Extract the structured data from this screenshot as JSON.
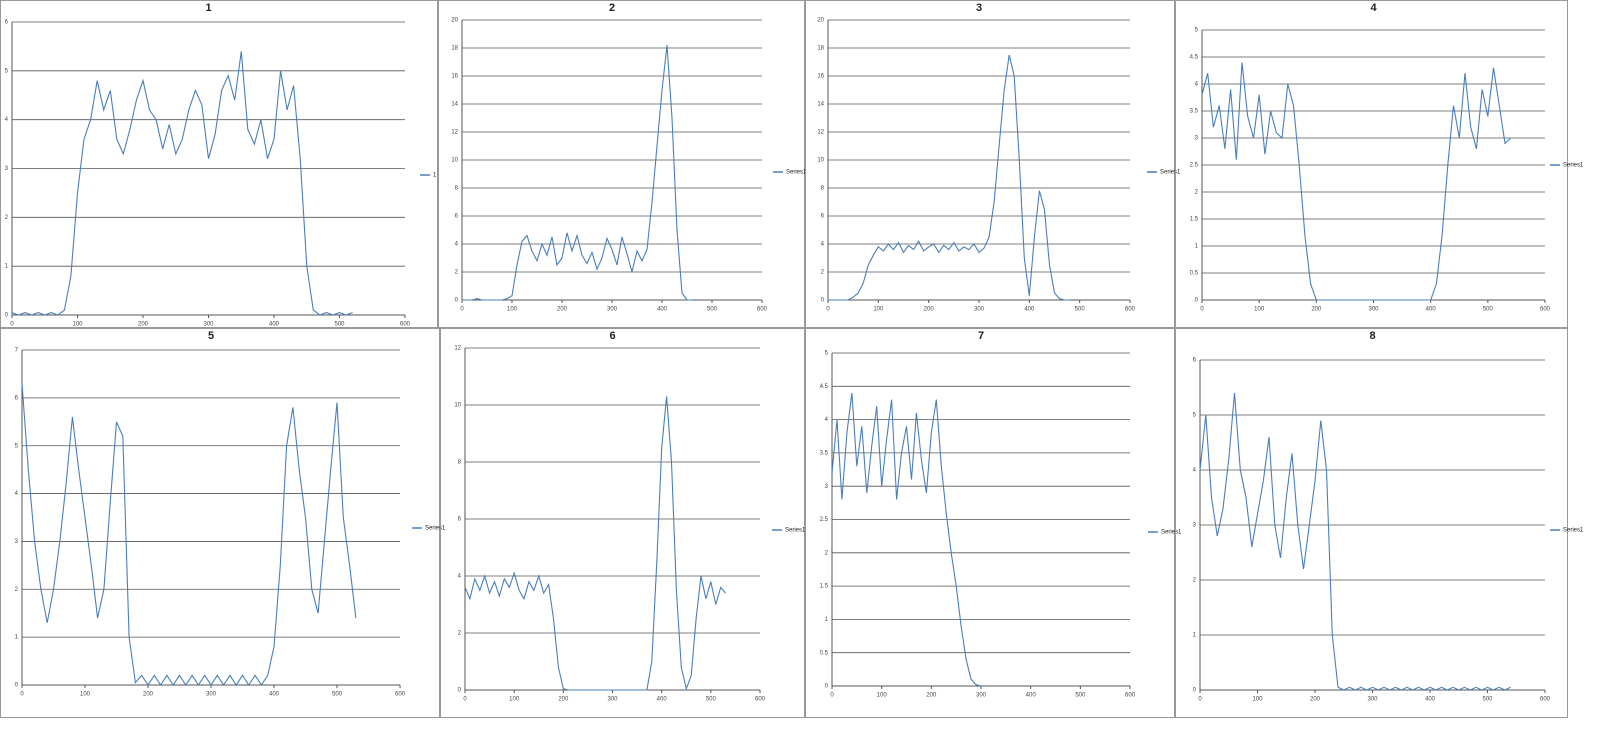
{
  "chart_data": [
    {
      "type": "line",
      "title": "1",
      "xlim": [
        0,
        600
      ],
      "xticks": [
        0,
        100,
        200,
        300,
        400,
        500,
        600
      ],
      "ylim": [
        0,
        6
      ],
      "yticks": [
        0,
        1,
        2,
        3,
        4,
        5,
        6
      ],
      "grid": true,
      "x": [
        0,
        10,
        20,
        30,
        40,
        50,
        60,
        70,
        80,
        90,
        100,
        110,
        120,
        130,
        140,
        150,
        160,
        170,
        180,
        190,
        200,
        210,
        220,
        230,
        240,
        250,
        260,
        270,
        280,
        290,
        300,
        310,
        320,
        330,
        340,
        350,
        360,
        370,
        380,
        390,
        400,
        410,
        420,
        430,
        440,
        450,
        460,
        470,
        480,
        490,
        500,
        510,
        520
      ],
      "series": [
        {
          "name": "1",
          "color": "#4a7ebb",
          "values": [
            0.05,
            0,
            0.05,
            0,
            0.05,
            0,
            0.05,
            0,
            0.1,
            0.8,
            2.5,
            3.6,
            4.0,
            4.8,
            4.2,
            4.6,
            3.6,
            3.3,
            3.8,
            4.4,
            4.8,
            4.2,
            4.0,
            3.4,
            3.9,
            3.3,
            3.6,
            4.2,
            4.6,
            4.3,
            3.2,
            3.7,
            4.6,
            4.9,
            4.4,
            5.4,
            3.8,
            3.5,
            4.0,
            3.2,
            3.6,
            5.0,
            4.2,
            4.7,
            3.2,
            1.0,
            0.1,
            0,
            0.05,
            0,
            0.05,
            0,
            0.05
          ]
        }
      ]
    },
    {
      "type": "line",
      "title": "2",
      "xlim": [
        0,
        600
      ],
      "xticks": [
        0,
        100,
        200,
        300,
        400,
        500,
        600
      ],
      "ylim": [
        0,
        20
      ],
      "yticks": [
        0,
        2,
        4,
        6,
        8,
        10,
        12,
        14,
        16,
        18,
        20
      ],
      "grid": true,
      "x": [
        0,
        10,
        20,
        30,
        40,
        50,
        60,
        70,
        80,
        90,
        100,
        110,
        120,
        130,
        140,
        150,
        160,
        170,
        180,
        190,
        200,
        210,
        220,
        230,
        240,
        250,
        260,
        270,
        280,
        290,
        300,
        310,
        320,
        330,
        340,
        350,
        360,
        370,
        380,
        390,
        400,
        410,
        420,
        430,
        440,
        450,
        460
      ],
      "series": [
        {
          "name": "Series1",
          "color": "#4a7ebb",
          "values": [
            0,
            0,
            0,
            0.1,
            0,
            0,
            0,
            0,
            0,
            0.1,
            0.3,
            2.5,
            4.2,
            4.6,
            3.5,
            2.8,
            4.0,
            3.2,
            4.5,
            2.5,
            3.0,
            4.8,
            3.5,
            4.6,
            3.2,
            2.6,
            3.4,
            2.2,
            3.0,
            4.4,
            3.6,
            2.5,
            4.5,
            3.3,
            2.0,
            3.5,
            2.8,
            3.6,
            7.0,
            11.0,
            15.0,
            18.2,
            13.0,
            5.0,
            0.5,
            0,
            0
          ]
        }
      ]
    },
    {
      "type": "line",
      "title": "3",
      "xlim": [
        0,
        600
      ],
      "xticks": [
        0,
        100,
        200,
        300,
        400,
        500,
        600
      ],
      "ylim": [
        0,
        20
      ],
      "yticks": [
        0,
        2,
        4,
        6,
        8,
        10,
        12,
        14,
        16,
        18,
        20
      ],
      "grid": true,
      "x": [
        0,
        10,
        20,
        30,
        40,
        50,
        60,
        70,
        80,
        90,
        100,
        110,
        120,
        130,
        140,
        150,
        160,
        170,
        180,
        190,
        200,
        210,
        220,
        230,
        240,
        250,
        260,
        270,
        280,
        290,
        300,
        310,
        320,
        330,
        340,
        350,
        360,
        370,
        380,
        390,
        400,
        410,
        420,
        430,
        440,
        450,
        460,
        470,
        480
      ],
      "series": [
        {
          "name": "Series1",
          "color": "#4a7ebb",
          "values": [
            0,
            0,
            0,
            0,
            0,
            0.2,
            0.5,
            1.2,
            2.5,
            3.2,
            3.8,
            3.5,
            4.0,
            3.6,
            4.1,
            3.4,
            3.9,
            3.6,
            4.2,
            3.5,
            3.8,
            4.0,
            3.4,
            3.9,
            3.6,
            4.1,
            3.5,
            3.8,
            3.6,
            4.0,
            3.4,
            3.7,
            4.5,
            7.0,
            11.0,
            15.0,
            17.5,
            16.0,
            10.0,
            3.0,
            0.3,
            4.5,
            7.8,
            6.5,
            2.5,
            0.5,
            0.1,
            0,
            0
          ]
        }
      ]
    },
    {
      "type": "line",
      "title": "4",
      "xlim": [
        0,
        600
      ],
      "xticks": [
        0,
        100,
        200,
        300,
        400,
        500,
        600
      ],
      "ylim": [
        0,
        5
      ],
      "yticks": [
        0,
        0.5,
        1,
        1.5,
        2,
        2.5,
        3,
        3.5,
        4,
        4.5,
        5
      ],
      "grid": true,
      "x": [
        0,
        10,
        20,
        30,
        40,
        50,
        60,
        70,
        80,
        90,
        100,
        110,
        120,
        130,
        140,
        150,
        160,
        170,
        180,
        190,
        200,
        210,
        220,
        230,
        240,
        250,
        260,
        270,
        280,
        290,
        300,
        310,
        320,
        330,
        340,
        350,
        360,
        370,
        380,
        390,
        400,
        410,
        420,
        430,
        440,
        450,
        460,
        470,
        480,
        490,
        500,
        510,
        520,
        530,
        540
      ],
      "series": [
        {
          "name": "Series1",
          "color": "#4a7ebb",
          "values": [
            3.8,
            4.2,
            3.2,
            3.6,
            2.8,
            3.9,
            2.6,
            4.4,
            3.4,
            3.0,
            3.8,
            2.7,
            3.5,
            3.1,
            3.0,
            4.0,
            3.6,
            2.5,
            1.2,
            0.3,
            0,
            0,
            0,
            0,
            0,
            0,
            0,
            0,
            0,
            0,
            0,
            0,
            0,
            0,
            0,
            0,
            0,
            0,
            0,
            0,
            0,
            0.3,
            1.2,
            2.5,
            3.6,
            3.0,
            4.2,
            3.2,
            2.8,
            3.9,
            3.4,
            4.3,
            3.6,
            2.9,
            3.0
          ]
        }
      ]
    },
    {
      "type": "line",
      "title": "5",
      "xlim": [
        0,
        600
      ],
      "xticks": [
        0,
        100,
        200,
        300,
        400,
        500,
        600
      ],
      "ylim": [
        0,
        7
      ],
      "yticks": [
        0,
        1,
        2,
        3,
        4,
        5,
        6,
        7
      ],
      "grid": true,
      "x": [
        0,
        10,
        20,
        30,
        40,
        50,
        60,
        70,
        80,
        90,
        100,
        110,
        120,
        130,
        140,
        150,
        160,
        170,
        180,
        190,
        200,
        210,
        220,
        230,
        240,
        250,
        260,
        270,
        280,
        290,
        300,
        310,
        320,
        330,
        340,
        350,
        360,
        370,
        380,
        390,
        400,
        410,
        420,
        430,
        440,
        450,
        460,
        470,
        480,
        490,
        500,
        510,
        520,
        530
      ],
      "series": [
        {
          "name": "Series1",
          "color": "#4a7ebb",
          "values": [
            6.3,
            4.5,
            3.0,
            2.0,
            1.3,
            2.0,
            3.0,
            4.2,
            5.6,
            4.5,
            3.5,
            2.5,
            1.4,
            2.0,
            3.8,
            5.5,
            5.2,
            1.0,
            0.05,
            0.2,
            0,
            0.2,
            0,
            0.2,
            0,
            0.2,
            0,
            0.2,
            0,
            0.2,
            0,
            0.2,
            0,
            0.2,
            0,
            0.2,
            0,
            0.2,
            0,
            0.2,
            0.8,
            2.5,
            5.0,
            5.8,
            4.5,
            3.5,
            2.0,
            1.5,
            3.0,
            4.5,
            5.9,
            3.5,
            2.5,
            1.4
          ]
        }
      ]
    },
    {
      "type": "line",
      "title": "6",
      "xlim": [
        0,
        600
      ],
      "xticks": [
        0,
        100,
        200,
        300,
        400,
        500,
        600
      ],
      "ylim": [
        0,
        12
      ],
      "yticks": [
        0,
        2,
        4,
        6,
        8,
        10,
        12
      ],
      "grid": true,
      "x": [
        0,
        10,
        20,
        30,
        40,
        50,
        60,
        70,
        80,
        90,
        100,
        110,
        120,
        130,
        140,
        150,
        160,
        170,
        180,
        190,
        200,
        210,
        220,
        230,
        240,
        250,
        260,
        270,
        280,
        290,
        300,
        310,
        320,
        330,
        340,
        350,
        360,
        370,
        380,
        390,
        400,
        410,
        420,
        430,
        440,
        450,
        460,
        470,
        480,
        490,
        500,
        510,
        520,
        530
      ],
      "series": [
        {
          "name": "Series1",
          "color": "#4a7ebb",
          "values": [
            3.6,
            3.2,
            3.9,
            3.5,
            4.0,
            3.4,
            3.8,
            3.3,
            3.9,
            3.6,
            4.1,
            3.5,
            3.2,
            3.8,
            3.5,
            4.0,
            3.4,
            3.7,
            2.5,
            0.8,
            0.05,
            0,
            0,
            0,
            0,
            0,
            0,
            0,
            0,
            0,
            0,
            0,
            0,
            0,
            0,
            0,
            0,
            0,
            1.0,
            4.5,
            8.5,
            10.3,
            8.0,
            3.5,
            0.8,
            0.05,
            0.5,
            2.5,
            4.0,
            3.2,
            3.8,
            3.0,
            3.6,
            3.4
          ]
        }
      ]
    },
    {
      "type": "line",
      "title": "7",
      "xlim": [
        0,
        600
      ],
      "xticks": [
        0,
        100,
        200,
        300,
        400,
        500,
        600
      ],
      "ylim": [
        0,
        5
      ],
      "yticks": [
        0,
        0.5,
        1,
        1.5,
        2,
        2.5,
        3,
        3.5,
        4,
        4.5,
        5
      ],
      "grid": true,
      "x": [
        0,
        10,
        20,
        30,
        40,
        50,
        60,
        70,
        80,
        90,
        100,
        110,
        120,
        130,
        140,
        150,
        160,
        170,
        180,
        190,
        200,
        210,
        220,
        230,
        240,
        250,
        260,
        270,
        280,
        290,
        300
      ],
      "series": [
        {
          "name": "Series1",
          "color": "#4a7ebb",
          "values": [
            3.2,
            4.0,
            2.8,
            3.8,
            4.4,
            3.3,
            3.9,
            2.9,
            3.6,
            4.2,
            3.0,
            3.7,
            4.3,
            2.8,
            3.5,
            3.9,
            3.1,
            4.1,
            3.4,
            2.9,
            3.8,
            4.3,
            3.3,
            2.6,
            2.0,
            1.5,
            0.9,
            0.4,
            0.1,
            0.02,
            0
          ]
        }
      ]
    },
    {
      "type": "line",
      "title": "8",
      "xlim": [
        0,
        600
      ],
      "xticks": [
        0,
        100,
        200,
        300,
        400,
        500,
        600
      ],
      "ylim": [
        0,
        6
      ],
      "yticks": [
        0,
        1,
        2,
        3,
        4,
        5,
        6
      ],
      "grid": true,
      "x": [
        0,
        10,
        20,
        30,
        40,
        50,
        60,
        70,
        80,
        90,
        100,
        110,
        120,
        130,
        140,
        150,
        160,
        170,
        180,
        190,
        200,
        210,
        220,
        230,
        240,
        250,
        260,
        270,
        280,
        290,
        300,
        310,
        320,
        330,
        340,
        350,
        360,
        370,
        380,
        390,
        400,
        410,
        420,
        430,
        440,
        450,
        460,
        470,
        480,
        490,
        500,
        510,
        520,
        530,
        540
      ],
      "series": [
        {
          "name": "Series1",
          "color": "#4a7ebb",
          "values": [
            4.0,
            5.0,
            3.5,
            2.8,
            3.3,
            4.2,
            5.4,
            4.0,
            3.5,
            2.6,
            3.2,
            3.8,
            4.6,
            3.0,
            2.4,
            3.5,
            4.3,
            3.0,
            2.2,
            3.0,
            3.8,
            4.9,
            4.0,
            1.0,
            0.05,
            0,
            0.05,
            0,
            0.05,
            0,
            0.05,
            0,
            0.05,
            0,
            0.05,
            0,
            0.05,
            0,
            0.05,
            0,
            0.05,
            0,
            0.05,
            0,
            0.05,
            0,
            0.05,
            0,
            0.05,
            0,
            0.05,
            0,
            0.05,
            0,
            0.05
          ]
        }
      ]
    }
  ]
}
